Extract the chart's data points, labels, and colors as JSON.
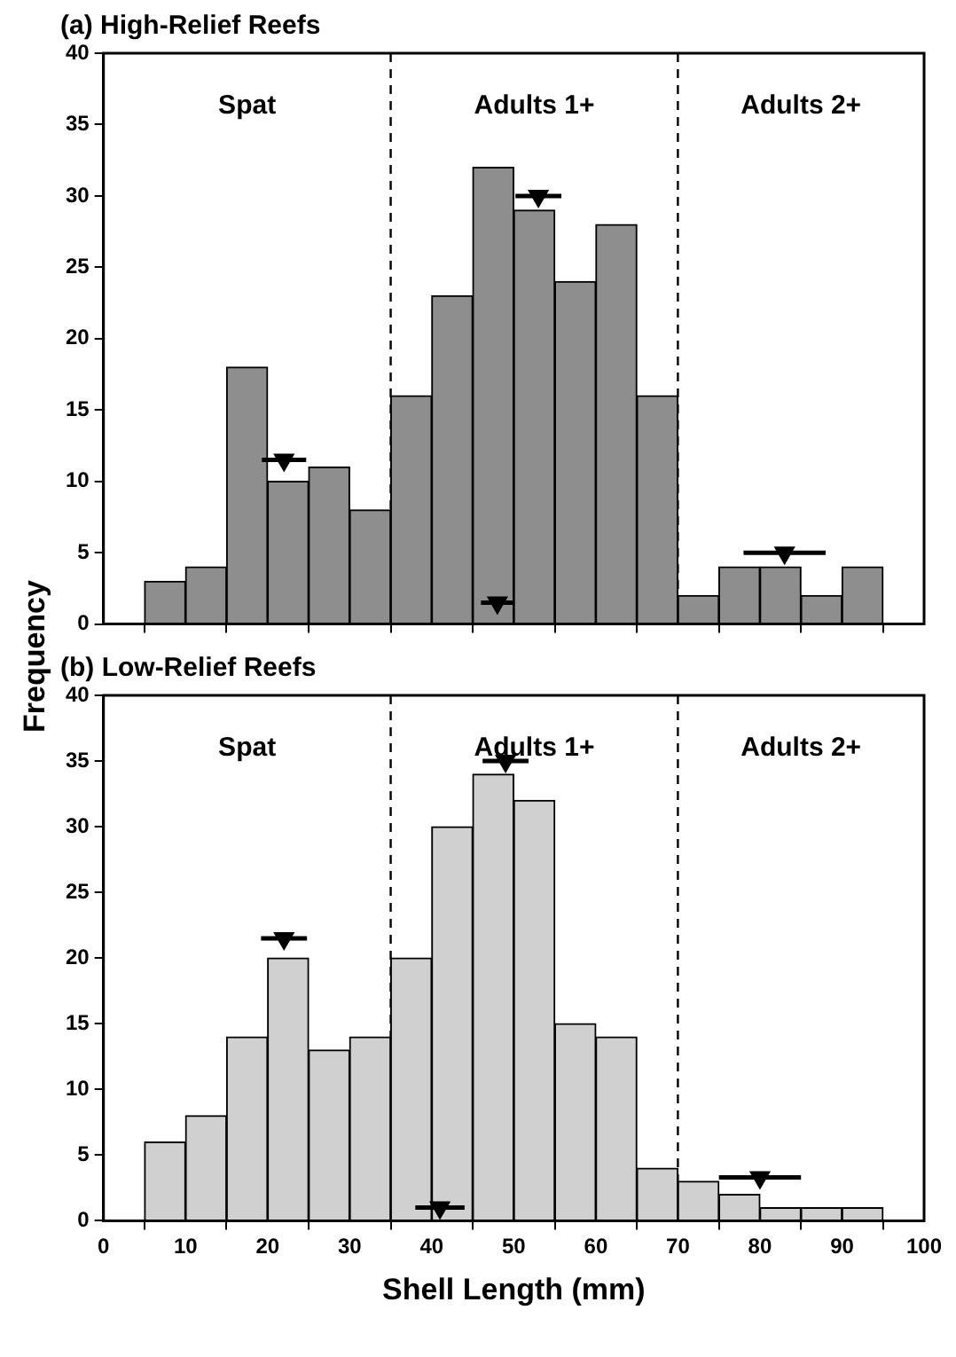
{
  "chart_data": [
    {
      "type": "histogram",
      "title": "(a) High-Relief Reefs",
      "ylabel": "Frequency",
      "bins": [
        5,
        10,
        15,
        20,
        25,
        30,
        35,
        40,
        45,
        50,
        55,
        60,
        65,
        70,
        75,
        80,
        85,
        90,
        95
      ],
      "values": [
        3,
        4,
        18,
        10,
        11,
        8,
        16,
        23,
        32,
        29,
        24,
        28,
        16,
        2,
        4,
        4,
        2,
        4
      ],
      "color": "#8e8e8e",
      "xlim": [
        0,
        100
      ],
      "xticks": [
        0,
        10,
        20,
        30,
        40,
        50,
        60,
        70,
        80,
        90,
        100
      ],
      "ylim": [
        0,
        40
      ],
      "yticks": [
        0,
        5,
        10,
        15,
        20,
        25,
        30,
        35,
        40
      ],
      "tick_labels": "y",
      "grid": false,
      "legend": false,
      "ref_lines": [
        {
          "axis": "x",
          "value": 35,
          "line_style": "dashed",
          "color": "#000000"
        },
        {
          "axis": "x",
          "value": 70,
          "line_style": "dashed",
          "color": "#000000"
        }
      ],
      "annotations": [
        "Spat",
        "Adults 1+",
        "Adults 2+"
      ],
      "series": [
        {
          "type": "scatter",
          "color": "#000000",
          "marker": "triangle",
          "x": [
            22,
            48,
            53,
            83
          ],
          "values": [
            11.5,
            1.5,
            30,
            5
          ],
          "xerrors": [
            2.7,
            2,
            2.8,
            5
          ]
        }
      ]
    },
    {
      "type": "histogram",
      "title": "(b) Low-Relief Reefs",
      "xlabel": "Shell Length (mm)",
      "bins": [
        5,
        10,
        15,
        20,
        25,
        30,
        35,
        40,
        45,
        50,
        55,
        60,
        65,
        70,
        75,
        80,
        85,
        90,
        95
      ],
      "values": [
        6,
        8,
        14,
        20,
        13,
        14,
        20,
        30,
        34,
        32,
        15,
        14,
        4,
        3,
        2,
        1,
        1,
        1
      ],
      "color": "#d0d0d0",
      "xlim": [
        0,
        100
      ],
      "xticks": [
        0,
        10,
        20,
        30,
        40,
        50,
        60,
        70,
        80,
        90,
        100
      ],
      "ylim": [
        0,
        40
      ],
      "yticks": [
        0,
        5,
        10,
        15,
        20,
        25,
        30,
        35,
        40
      ],
      "grid": false,
      "legend": false,
      "ref_lines": [
        {
          "axis": "x",
          "value": 35,
          "line_style": "dashed",
          "color": "#000000"
        },
        {
          "axis": "x",
          "value": 70,
          "line_style": "dashed",
          "color": "#000000"
        }
      ],
      "annotations": [
        "Spat",
        "Adults 1+",
        "Adults 2+"
      ],
      "series": [
        {
          "type": "scatter",
          "color": "#000000",
          "marker": "triangle",
          "x": [
            22,
            41,
            49,
            80
          ],
          "values": [
            21.5,
            1,
            35,
            3.3
          ],
          "xerrors": [
            2.8,
            3,
            2.8,
            5
          ]
        }
      ]
    }
  ]
}
